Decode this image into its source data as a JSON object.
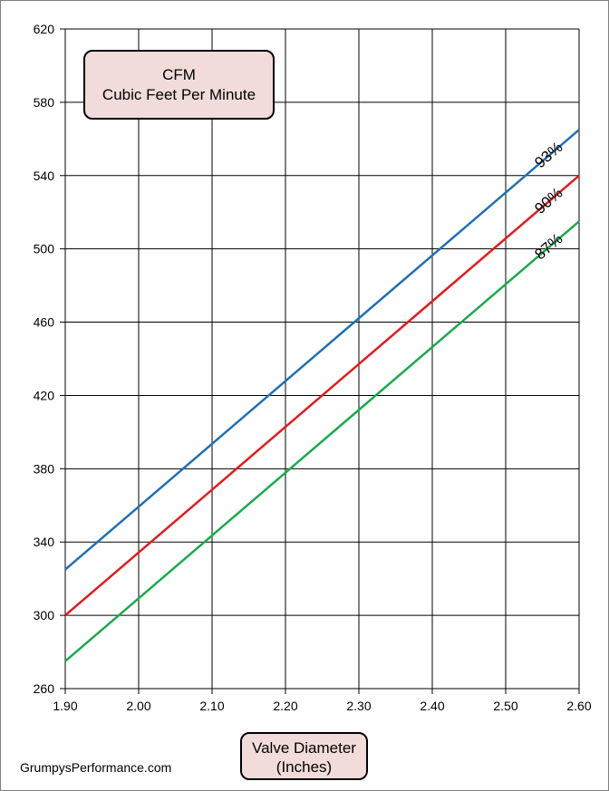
{
  "chart_data": {
    "type": "line",
    "title": "CFM",
    "subtitle": "Cubic Feet Per Minute",
    "xlabel": "Valve Diameter",
    "xlabel_unit": "(Inches)",
    "ylabel": "",
    "xlim": [
      1.9,
      2.6
    ],
    "ylim": [
      260,
      620
    ],
    "x_ticks": [
      "1.90",
      "2.00",
      "2.10",
      "2.20",
      "2.30",
      "2.40",
      "2.50",
      "2.60"
    ],
    "y_ticks": [
      "260",
      "300",
      "340",
      "380",
      "420",
      "460",
      "500",
      "540",
      "580",
      "620"
    ],
    "grid": true,
    "series": [
      {
        "name": "93%",
        "color": "#1f6fb5",
        "x": [
          1.9,
          2.6
        ],
        "y": [
          325,
          565
        ]
      },
      {
        "name": "90%",
        "color": "#e31a1c",
        "x": [
          1.9,
          2.6
        ],
        "y": [
          300,
          540
        ]
      },
      {
        "name": "87%",
        "color": "#18ab4b",
        "x": [
          1.9,
          2.6
        ],
        "y": [
          275,
          515
        ]
      }
    ]
  },
  "watermark": "GrumpysPerformance.com"
}
